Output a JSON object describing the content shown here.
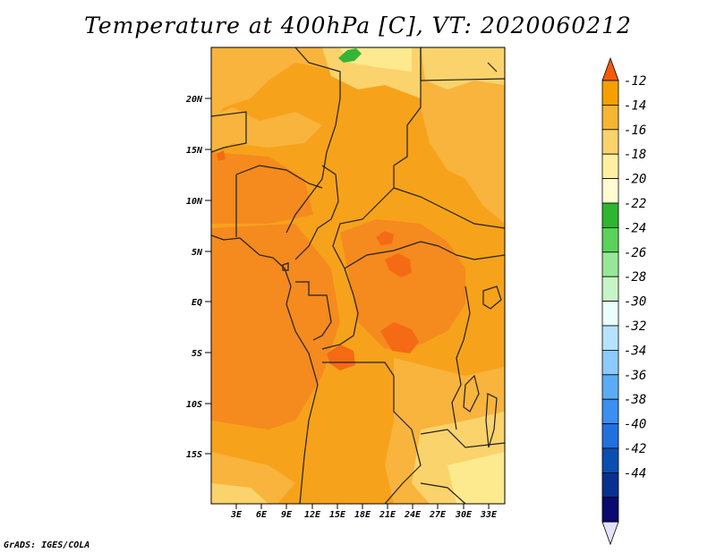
{
  "title": "Temperature at 400hPa [C], VT: 2020060212",
  "credit": "GrADS: IGES/COLA",
  "map": {
    "lat_labels": [
      "20N",
      "15N",
      "10N",
      "5N",
      "EQ",
      "5S",
      "10S",
      "15S"
    ],
    "lon_labels": [
      "3E",
      "6E",
      "9E",
      "12E",
      "15E",
      "18E",
      "21E",
      "24E",
      "27E",
      "30E",
      "33E"
    ]
  },
  "colorbar": {
    "labels": [
      "-12",
      "-14",
      "-16",
      "-18",
      "-20",
      "-22",
      "-24",
      "-26",
      "-28",
      "-30",
      "-32",
      "-34",
      "-36",
      "-38",
      "-40",
      "-42",
      "-44"
    ],
    "colors": [
      "#f55a0a",
      "#f5a000",
      "#f7b534",
      "#fbd36c",
      "#fef0a0",
      "#fffdd0",
      "#2fb530",
      "#5ad35a",
      "#96e896",
      "#c8f5c8",
      "#eaffff",
      "#b5e2ff",
      "#8ccaff",
      "#5aadf5",
      "#3a8ff0",
      "#2070e0",
      "#0a4fb0",
      "#083090",
      "#0a0a70",
      "#e2e2fa"
    ]
  },
  "colors": {
    "field_main": "#f7a21b",
    "field_warm": "#f58a1e",
    "field_hot": "#f56a14",
    "field_light": "#f8b43c",
    "field_pale": "#fbd36c",
    "field_paler": "#fde98e",
    "green_patch": "#35b535",
    "border": "#202020"
  }
}
